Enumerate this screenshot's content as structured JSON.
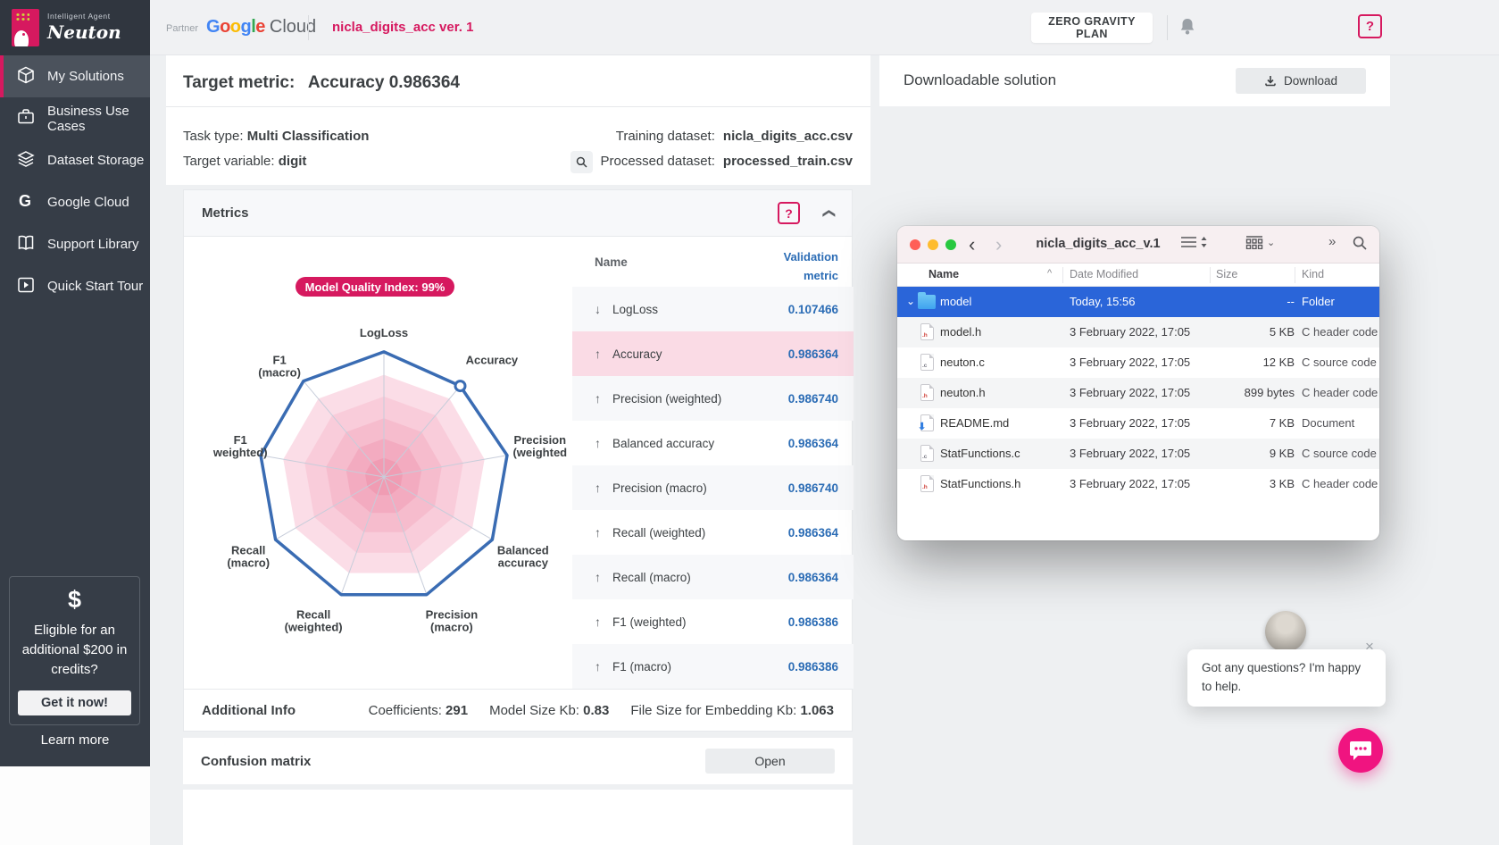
{
  "sidebar": {
    "logo": {
      "tagline": "Intelligent Agent",
      "brand": "Neuton"
    },
    "items": [
      {
        "label": "My Solutions",
        "icon": "cube-icon",
        "active": true
      },
      {
        "label": "Business Use Cases",
        "icon": "briefcase-icon",
        "active": false
      },
      {
        "label": "Dataset Storage",
        "icon": "layers-icon",
        "active": false
      },
      {
        "label": "Google Cloud",
        "icon": "google-g-icon",
        "active": false
      },
      {
        "label": "Support Library",
        "icon": "book-icon",
        "active": false
      },
      {
        "label": "Quick Start Tour",
        "icon": "play-icon",
        "active": false
      }
    ],
    "credits": {
      "dollar": "$",
      "text": "Eligible for an additional $200 in credits?",
      "button": "Get it now!",
      "link": "Learn more"
    }
  },
  "topbar": {
    "partner_label": "Partner",
    "google_letters": [
      {
        "ch": "G",
        "color": "#4285F4"
      },
      {
        "ch": "o",
        "color": "#EA4335"
      },
      {
        "ch": "o",
        "color": "#FBBC05"
      },
      {
        "ch": "g",
        "color": "#4285F4"
      },
      {
        "ch": "l",
        "color": "#34A853"
      },
      {
        "ch": "e",
        "color": "#EA4335"
      }
    ],
    "cloud_text": "Cloud",
    "project_title": "nicla_digits_acc ver. 1",
    "plan_button": "ZERO GRAVITY PLAN",
    "help_button": "?"
  },
  "main": {
    "target_metric_label": "Target metric:",
    "target_metric_value": "Accuracy 0.986364",
    "task_type_label": "Task type:",
    "task_type": "Multi Classification",
    "target_variable_label": "Target variable:",
    "target_variable": "digit",
    "training_label": "Training dataset:",
    "training_value": "nicla_digits_acc.csv",
    "processed_label": "Processed dataset:",
    "processed_value": "processed_train.csv"
  },
  "metrics_panel": {
    "title": "Metrics",
    "help": "?",
    "collapse_glyph": "❯",
    "name_header": "Name",
    "value_header_line1": "Validation",
    "value_header_line2": "metric",
    "arrow_up": "↑",
    "arrow_down": "↓",
    "rows": [
      {
        "dir": "down",
        "name": "LogLoss",
        "value": "0.107466",
        "highlight": false
      },
      {
        "dir": "up",
        "name": "Accuracy",
        "value": "0.986364",
        "highlight": true
      },
      {
        "dir": "up",
        "name": "Precision (weighted)",
        "value": "0.986740",
        "highlight": false
      },
      {
        "dir": "up",
        "name": "Balanced accuracy",
        "value": "0.986364",
        "highlight": false
      },
      {
        "dir": "up",
        "name": "Precision (macro)",
        "value": "0.986740",
        "highlight": false
      },
      {
        "dir": "up",
        "name": "Recall (weighted)",
        "value": "0.986364",
        "highlight": false
      },
      {
        "dir": "up",
        "name": "Recall (macro)",
        "value": "0.986364",
        "highlight": false
      },
      {
        "dir": "up",
        "name": "F1 (weighted)",
        "value": "0.986386",
        "highlight": false
      },
      {
        "dir": "up",
        "name": "F1 (macro)",
        "value": "0.986386",
        "highlight": false
      }
    ],
    "additional_info": {
      "title": "Additional Info",
      "items": [
        {
          "label": "Coefficients:",
          "value": "291"
        },
        {
          "label": "Model Size Kb:",
          "value": "0.83"
        },
        {
          "label": "File Size for Embedding Kb:",
          "value": "1.063"
        }
      ]
    }
  },
  "confusion": {
    "title": "Confusion matrix",
    "button": "Open"
  },
  "download_panel": {
    "title": "Downloadable solution",
    "button": "Download"
  },
  "chart_data": {
    "type": "radar",
    "title": "Model Quality Index: 99%",
    "axes": [
      [
        "LogLoss"
      ],
      [
        "Accuracy"
      ],
      [
        "Precision",
        "(weighted"
      ],
      [
        "Balanced",
        "accuracy"
      ],
      [
        "Precision",
        "(macro)"
      ],
      [
        "Recall",
        "(weighted)"
      ],
      [
        "Recall",
        "(macro)"
      ],
      [
        "F1",
        "weighted)"
      ],
      [
        "F1",
        "(macro)"
      ]
    ],
    "values": [
      0.98,
      0.93,
      0.98,
      0.98,
      0.98,
      0.98,
      0.98,
      0.98,
      0.98
    ],
    "marker_axis_index": 1,
    "rings": [
      0.8,
      0.63,
      0.46,
      0.3,
      0.15
    ],
    "ring_colors": [
      "#fbdde7",
      "#f9ccda",
      "#f6bccd",
      "#f3abc0",
      "#f09cb3"
    ],
    "line_color": "#3a6cb3",
    "grid_color": "#c7cdda",
    "badge_color": "#d6195f",
    "legend": "none",
    "axis_range": [
      0,
      1
    ]
  },
  "finder": {
    "window_title": "nicla_digits_acc_v.1",
    "glyphs": {
      "back": "‹",
      "forward": "›",
      "sort": "^",
      "view_chevron": "⌄",
      "more": "»",
      "disclosure": "⌄"
    },
    "columns": [
      "Name",
      "Date Modified",
      "Size",
      "Kind"
    ],
    "rows": [
      {
        "name": "model",
        "date": "Today, 15:56",
        "size": "--",
        "kind": "Folder",
        "icon": "folder-icon",
        "selected": true
      },
      {
        "name": "model.h",
        "date": "3 February 2022, 17:05",
        "size": "5 KB",
        "kind": "C header code",
        "icon": "h-file-icon",
        "selected": false
      },
      {
        "name": "neuton.c",
        "date": "3 February 2022, 17:05",
        "size": "12 KB",
        "kind": "C source code",
        "icon": "c-file-icon",
        "selected": false
      },
      {
        "name": "neuton.h",
        "date": "3 February 2022, 17:05",
        "size": "899 bytes",
        "kind": "C header code",
        "icon": "h-file-icon",
        "selected": false
      },
      {
        "name": "README.md",
        "date": "3 February 2022, 17:05",
        "size": "7 KB",
        "kind": "Document",
        "icon": "md-file-icon",
        "selected": false
      },
      {
        "name": "StatFunctions.c",
        "date": "3 February 2022, 17:05",
        "size": "9 KB",
        "kind": "C source code",
        "icon": "c-file-icon",
        "selected": false
      },
      {
        "name": "StatFunctions.h",
        "date": "3 February 2022, 17:05",
        "size": "3 KB",
        "kind": "C header code",
        "icon": "h-file-icon",
        "selected": false
      }
    ]
  },
  "chat": {
    "message": "Got any questions? I'm happy to help.",
    "close": "×"
  }
}
